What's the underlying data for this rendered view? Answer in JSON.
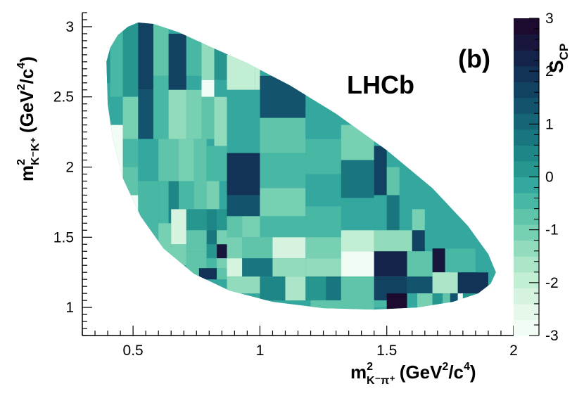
{
  "chart_data": {
    "type": "heatmap",
    "panel_label": "(b)",
    "experiment_label": "LHCb",
    "x_axis": {
      "label": {
        "base": "m",
        "sup": "2",
        "sub": "K⁻π⁺",
        "units_open": "(GeV",
        "units_sup1": "2",
        "units_mid": "/c",
        "units_sup2": "4",
        "units_close": ")"
      },
      "range": [
        0.3,
        2.0
      ],
      "ticks": [
        0.5,
        1.0,
        1.5,
        2.0
      ],
      "tick_labels": [
        "0.5",
        "1",
        "1.5",
        "2"
      ]
    },
    "y_axis": {
      "label": {
        "base": "m",
        "sup": "2",
        "sub": "K⁻K⁺",
        "units_open": "(GeV",
        "units_sup1": "2",
        "units_mid": "/c",
        "units_sup2": "4",
        "units_close": ")"
      },
      "range": [
        0.8,
        3.1
      ],
      "ticks": [
        1.0,
        1.5,
        2.0,
        2.5,
        3.0
      ],
      "tick_labels": [
        "1",
        "1.5",
        "2",
        "2.5",
        "3"
      ]
    },
    "z_axis": {
      "label": {
        "base": "S",
        "sub": "CP"
      },
      "range": [
        -3,
        3
      ],
      "ticks": [
        -3,
        -2,
        -1,
        0,
        1,
        2,
        3
      ],
      "tick_labels": [
        "-3",
        "-2",
        "-1",
        "0",
        "1",
        "2",
        "3"
      ]
    },
    "colorscale": [
      "#f1fcf4",
      "#e5f8e9",
      "#d5f3df",
      "#c2eed3",
      "#acE5c8",
      "#92dcbd",
      "#78d0b3",
      "#5fc4aa",
      "#48b7a3",
      "#34a79e",
      "#26968f",
      "#1e8687",
      "#19767f",
      "#166577",
      "#14536d",
      "#124262",
      "#123257",
      "#14234a",
      "#18163c",
      "#1d0a2f"
    ],
    "domain_boundary": [
      [
        0.395,
        2.75
      ],
      [
        0.41,
        2.85
      ],
      [
        0.44,
        2.94
      ],
      [
        0.48,
        3.0
      ],
      [
        0.52,
        3.03
      ],
      [
        0.58,
        3.02
      ],
      [
        0.68,
        2.96
      ],
      [
        0.8,
        2.86
      ],
      [
        0.95,
        2.74
      ],
      [
        1.12,
        2.58
      ],
      [
        1.3,
        2.38
      ],
      [
        1.5,
        2.12
      ],
      [
        1.68,
        1.85
      ],
      [
        1.82,
        1.58
      ],
      [
        1.9,
        1.38
      ],
      [
        1.93,
        1.25
      ],
      [
        1.91,
        1.17
      ],
      [
        1.86,
        1.1
      ],
      [
        1.76,
        1.04
      ],
      [
        1.62,
        1.0
      ],
      [
        1.45,
        0.985
      ],
      [
        1.25,
        0.995
      ],
      [
        1.05,
        1.04
      ],
      [
        0.88,
        1.12
      ],
      [
        0.74,
        1.24
      ],
      [
        0.62,
        1.42
      ],
      [
        0.53,
        1.65
      ],
      [
        0.46,
        1.92
      ],
      [
        0.42,
        2.2
      ],
      [
        0.4,
        2.45
      ]
    ],
    "cells": [
      {
        "x0": 0.38,
        "x1": 0.41,
        "y0": 2.6,
        "y1": 3.05,
        "v": 0.0
      },
      {
        "x0": 0.41,
        "x1": 0.46,
        "y0": 2.5,
        "y1": 3.05,
        "v": -0.4
      },
      {
        "x0": 0.46,
        "x1": 0.52,
        "y0": 2.5,
        "y1": 3.05,
        "v": 0.3
      },
      {
        "x0": 0.38,
        "x1": 0.46,
        "y0": 2.3,
        "y1": 2.5,
        "v": -0.3
      },
      {
        "x0": 0.46,
        "x1": 0.52,
        "y0": 2.3,
        "y1": 2.5,
        "v": -0.6
      },
      {
        "x0": 0.38,
        "x1": 0.46,
        "y0": 1.8,
        "y1": 2.3,
        "v": -2.8
      },
      {
        "x0": 0.46,
        "x1": 0.52,
        "y0": 2.2,
        "y1": 2.5,
        "v": -1.2
      },
      {
        "x0": 0.46,
        "x1": 0.52,
        "y0": 2.0,
        "y1": 2.2,
        "v": -0.5
      },
      {
        "x0": 0.38,
        "x1": 0.52,
        "y0": 1.4,
        "y1": 1.8,
        "v": -2.9
      },
      {
        "x0": 0.46,
        "x1": 0.52,
        "y0": 1.8,
        "y1": 2.0,
        "v": -0.7
      },
      {
        "x0": 0.52,
        "x1": 0.58,
        "y0": 2.55,
        "y1": 3.05,
        "v": 1.6
      },
      {
        "x0": 0.52,
        "x1": 0.58,
        "y0": 2.2,
        "y1": 2.55,
        "v": 1.2
      },
      {
        "x0": 0.52,
        "x1": 0.6,
        "y0": 1.9,
        "y1": 2.2,
        "v": -0.1
      },
      {
        "x0": 0.52,
        "x1": 0.6,
        "y0": 1.3,
        "y1": 1.9,
        "v": -0.4
      },
      {
        "x0": 0.58,
        "x1": 0.64,
        "y0": 2.65,
        "y1": 3.05,
        "v": -0.9
      },
      {
        "x0": 0.58,
        "x1": 0.64,
        "y0": 2.2,
        "y1": 2.65,
        "v": -0.4
      },
      {
        "x0": 0.6,
        "x1": 0.68,
        "y0": 1.9,
        "y1": 2.2,
        "v": -0.6
      },
      {
        "x0": 0.6,
        "x1": 0.64,
        "y0": 1.6,
        "y1": 1.9,
        "v": -0.5
      },
      {
        "x0": 0.64,
        "x1": 0.68,
        "y0": 1.6,
        "y1": 1.9,
        "v": 0.4
      },
      {
        "x0": 0.6,
        "x1": 0.65,
        "y0": 1.3,
        "y1": 1.6,
        "v": -1.0
      },
      {
        "x0": 0.64,
        "x1": 0.71,
        "y0": 2.55,
        "y1": 2.95,
        "v": 1.8
      },
      {
        "x0": 0.71,
        "x1": 0.77,
        "y0": 2.65,
        "y1": 2.95,
        "v": -0.4
      },
      {
        "x0": 0.64,
        "x1": 0.71,
        "y0": 2.2,
        "y1": 2.55,
        "v": -1.4
      },
      {
        "x0": 0.71,
        "x1": 0.77,
        "y0": 2.2,
        "y1": 2.55,
        "v": -1.1
      },
      {
        "x0": 0.68,
        "x1": 0.74,
        "y0": 1.9,
        "y1": 2.2,
        "v": -1.2
      },
      {
        "x0": 0.74,
        "x1": 0.79,
        "y0": 1.9,
        "y1": 2.2,
        "v": -0.8
      },
      {
        "x0": 0.68,
        "x1": 0.74,
        "y0": 1.7,
        "y1": 1.9,
        "v": -0.4
      },
      {
        "x0": 0.74,
        "x1": 0.79,
        "y0": 1.7,
        "y1": 1.9,
        "v": -0.6
      },
      {
        "x0": 0.65,
        "x1": 0.71,
        "y0": 1.45,
        "y1": 1.7,
        "v": -2.2
      },
      {
        "x0": 0.71,
        "x1": 0.79,
        "y0": 1.55,
        "y1": 1.7,
        "v": 0.0
      },
      {
        "x0": 0.71,
        "x1": 0.79,
        "y0": 1.4,
        "y1": 1.55,
        "v": -0.8
      },
      {
        "x0": 0.65,
        "x1": 0.71,
        "y0": 1.3,
        "y1": 1.45,
        "v": -1.0
      },
      {
        "x0": 0.71,
        "x1": 0.79,
        "y0": 1.2,
        "y1": 1.4,
        "v": -0.6
      },
      {
        "x0": 0.77,
        "x1": 0.83,
        "y0": 2.62,
        "y1": 2.9,
        "v": -1.5
      },
      {
        "x0": 0.77,
        "x1": 0.82,
        "y0": 2.5,
        "y1": 2.62,
        "v": -2.7
      },
      {
        "x0": 0.82,
        "x1": 0.87,
        "y0": 2.62,
        "y1": 2.85,
        "v": 0.2
      },
      {
        "x0": 0.82,
        "x1": 0.87,
        "y0": 2.5,
        "y1": 2.62,
        "v": -0.3
      },
      {
        "x0": 0.77,
        "x1": 0.82,
        "y0": 2.2,
        "y1": 2.5,
        "v": -0.9
      },
      {
        "x0": 0.82,
        "x1": 0.87,
        "y0": 2.15,
        "y1": 2.5,
        "v": -1.5
      },
      {
        "x0": 0.79,
        "x1": 0.87,
        "y0": 1.9,
        "y1": 2.15,
        "v": -0.4
      },
      {
        "x0": 0.79,
        "x1": 0.84,
        "y0": 1.7,
        "y1": 1.9,
        "v": -1.0
      },
      {
        "x0": 0.84,
        "x1": 0.87,
        "y0": 1.7,
        "y1": 1.9,
        "v": -0.3
      },
      {
        "x0": 0.79,
        "x1": 0.83,
        "y0": 1.55,
        "y1": 1.7,
        "v": 0.5
      },
      {
        "x0": 0.83,
        "x1": 0.87,
        "y0": 1.55,
        "y1": 1.7,
        "v": 0.2
      },
      {
        "x0": 0.79,
        "x1": 0.83,
        "y0": 1.45,
        "y1": 1.55,
        "v": 0.6
      },
      {
        "x0": 0.83,
        "x1": 0.87,
        "y0": 1.45,
        "y1": 1.55,
        "v": -1.2
      },
      {
        "x0": 0.79,
        "x1": 0.83,
        "y0": 1.35,
        "y1": 1.45,
        "v": 0.0
      },
      {
        "x0": 0.83,
        "x1": 0.87,
        "y0": 1.35,
        "y1": 1.45,
        "v": 2.4
      },
      {
        "x0": 0.79,
        "x1": 0.83,
        "y0": 1.28,
        "y1": 1.35,
        "v": -0.4
      },
      {
        "x0": 0.83,
        "x1": 0.87,
        "y0": 1.28,
        "y1": 1.35,
        "v": -1.2
      },
      {
        "x0": 0.76,
        "x1": 0.83,
        "y0": 1.2,
        "y1": 1.28,
        "v": 2.0
      },
      {
        "x0": 0.83,
        "x1": 0.87,
        "y0": 1.2,
        "y1": 1.28,
        "v": -0.9
      },
      {
        "x0": 0.87,
        "x1": 0.98,
        "y0": 2.55,
        "y1": 2.8,
        "v": -2.0
      },
      {
        "x0": 0.87,
        "x1": 0.98,
        "y0": 2.1,
        "y1": 2.55,
        "v": -0.2
      },
      {
        "x0": 0.87,
        "x1": 1.0,
        "y0": 1.8,
        "y1": 2.1,
        "v": 2.0
      },
      {
        "x0": 0.87,
        "x1": 1.0,
        "y0": 1.65,
        "y1": 1.8,
        "v": 1.2
      },
      {
        "x0": 0.87,
        "x1": 0.93,
        "y0": 1.5,
        "y1": 1.65,
        "v": -0.6
      },
      {
        "x0": 0.93,
        "x1": 1.05,
        "y0": 1.5,
        "y1": 1.65,
        "v": -1.0
      },
      {
        "x0": 0.87,
        "x1": 0.93,
        "y0": 1.35,
        "y1": 1.5,
        "v": -1.0
      },
      {
        "x0": 0.93,
        "x1": 1.05,
        "y0": 1.35,
        "y1": 1.5,
        "v": -0.8
      },
      {
        "x0": 0.87,
        "x1": 0.93,
        "y0": 1.22,
        "y1": 1.35,
        "v": -2.2
      },
      {
        "x0": 0.93,
        "x1": 1.05,
        "y0": 1.22,
        "y1": 1.35,
        "v": 0.6
      },
      {
        "x0": 0.87,
        "x1": 1.0,
        "y0": 1.1,
        "y1": 1.22,
        "v": -1.5
      },
      {
        "x0": 0.98,
        "x1": 1.0,
        "y0": 2.55,
        "y1": 2.75,
        "v": -2.0
      },
      {
        "x0": 1.0,
        "x1": 1.18,
        "y0": 2.35,
        "y1": 2.65,
        "v": 1.4
      },
      {
        "x0": 0.98,
        "x1": 1.0,
        "y0": 2.1,
        "y1": 2.55,
        "v": -0.2
      },
      {
        "x0": 1.0,
        "x1": 1.18,
        "y0": 2.1,
        "y1": 2.35,
        "v": -0.6
      },
      {
        "x0": 1.0,
        "x1": 1.18,
        "y0": 1.85,
        "y1": 2.1,
        "v": -0.5
      },
      {
        "x0": 1.0,
        "x1": 1.18,
        "y0": 1.65,
        "y1": 1.85,
        "v": -1.2
      },
      {
        "x0": 1.0,
        "x1": 1.18,
        "y0": 1.5,
        "y1": 1.65,
        "v": -0.4
      },
      {
        "x0": 1.05,
        "x1": 1.18,
        "y0": 1.35,
        "y1": 1.5,
        "v": -2.4
      },
      {
        "x0": 1.05,
        "x1": 1.18,
        "y0": 1.22,
        "y1": 1.35,
        "v": -1.4
      },
      {
        "x0": 1.0,
        "x1": 1.1,
        "y0": 1.05,
        "y1": 1.22,
        "v": 0.5
      },
      {
        "x0": 1.1,
        "x1": 1.18,
        "y0": 1.05,
        "y1": 1.22,
        "v": -1.7
      },
      {
        "x0": 1.18,
        "x1": 1.32,
        "y0": 2.2,
        "y1": 2.45,
        "v": -0.1
      },
      {
        "x0": 1.18,
        "x1": 1.32,
        "y0": 1.95,
        "y1": 2.2,
        "v": -0.5
      },
      {
        "x0": 1.18,
        "x1": 1.32,
        "y0": 1.72,
        "y1": 1.95,
        "v": -0.2
      },
      {
        "x0": 1.18,
        "x1": 1.32,
        "y0": 1.5,
        "y1": 1.72,
        "v": -0.4
      },
      {
        "x0": 1.18,
        "x1": 1.32,
        "y0": 1.35,
        "y1": 1.5,
        "v": -1.2
      },
      {
        "x0": 1.18,
        "x1": 1.32,
        "y0": 1.22,
        "y1": 1.35,
        "v": -1.5
      },
      {
        "x0": 1.18,
        "x1": 1.26,
        "y0": 1.05,
        "y1": 1.22,
        "v": 0.0
      },
      {
        "x0": 1.26,
        "x1": 1.32,
        "y0": 1.05,
        "y1": 1.22,
        "v": 0.7
      },
      {
        "x0": 1.32,
        "x1": 1.45,
        "y0": 2.05,
        "y1": 2.3,
        "v": -1.0
      },
      {
        "x0": 1.32,
        "x1": 1.45,
        "y0": 1.78,
        "y1": 2.05,
        "v": 0.6
      },
      {
        "x0": 1.32,
        "x1": 1.45,
        "y0": 1.55,
        "y1": 1.78,
        "v": -0.2
      },
      {
        "x0": 1.32,
        "x1": 1.45,
        "y0": 1.4,
        "y1": 1.55,
        "v": -1.8
      },
      {
        "x0": 1.32,
        "x1": 1.45,
        "y0": 1.22,
        "y1": 1.4,
        "v": -2.8
      },
      {
        "x0": 1.32,
        "x1": 1.45,
        "y0": 1.0,
        "y1": 1.22,
        "v": -0.8
      },
      {
        "x0": 1.45,
        "x1": 1.5,
        "y0": 1.8,
        "y1": 2.15,
        "v": 1.6
      },
      {
        "x0": 1.5,
        "x1": 1.55,
        "y0": 1.8,
        "y1": 2.0,
        "v": -0.6
      },
      {
        "x0": 1.45,
        "x1": 1.5,
        "y0": 1.55,
        "y1": 1.8,
        "v": -0.2
      },
      {
        "x0": 1.5,
        "x1": 1.55,
        "y0": 1.55,
        "y1": 1.8,
        "v": 0.8
      },
      {
        "x0": 1.55,
        "x1": 1.6,
        "y0": 1.55,
        "y1": 1.85,
        "v": -0.3
      },
      {
        "x0": 1.45,
        "x1": 1.6,
        "y0": 1.4,
        "y1": 1.55,
        "v": -1.5
      },
      {
        "x0": 1.45,
        "x1": 1.58,
        "y0": 1.22,
        "y1": 1.4,
        "v": 2.2
      },
      {
        "x0": 1.45,
        "x1": 1.58,
        "y0": 1.05,
        "y1": 1.22,
        "v": 1.8
      },
      {
        "x0": 1.45,
        "x1": 1.5,
        "y0": 1.0,
        "y1": 1.05,
        "v": -0.4
      },
      {
        "x0": 1.6,
        "x1": 1.65,
        "y0": 1.55,
        "y1": 1.7,
        "v": -1.2
      },
      {
        "x0": 1.6,
        "x1": 1.65,
        "y0": 1.4,
        "y1": 1.55,
        "v": 1.8
      },
      {
        "x0": 1.58,
        "x1": 1.68,
        "y0": 1.22,
        "y1": 1.4,
        "v": -0.6
      },
      {
        "x0": 1.58,
        "x1": 1.68,
        "y0": 1.1,
        "y1": 1.22,
        "v": 1.2
      },
      {
        "x0": 1.65,
        "x1": 1.78,
        "y0": 1.42,
        "y1": 1.6,
        "v": -0.1
      },
      {
        "x0": 1.68,
        "x1": 1.73,
        "y0": 1.25,
        "y1": 1.42,
        "v": 2.6
      },
      {
        "x0": 1.73,
        "x1": 1.85,
        "y0": 1.25,
        "y1": 1.42,
        "v": -0.4
      },
      {
        "x0": 1.68,
        "x1": 1.78,
        "y0": 1.1,
        "y1": 1.25,
        "v": -1.6
      },
      {
        "x0": 1.78,
        "x1": 1.9,
        "y0": 1.1,
        "y1": 1.25,
        "v": 2.0
      },
      {
        "x0": 1.85,
        "x1": 1.93,
        "y0": 1.25,
        "y1": 1.42,
        "v": -0.3
      },
      {
        "x0": 1.5,
        "x1": 1.58,
        "y0": 0.98,
        "y1": 1.1,
        "v": 3.0
      },
      {
        "x0": 1.58,
        "x1": 1.62,
        "y0": 0.98,
        "y1": 1.1,
        "v": -0.2
      },
      {
        "x0": 1.62,
        "x1": 1.68,
        "y0": 0.98,
        "y1": 1.1,
        "v": -1.2
      },
      {
        "x0": 1.68,
        "x1": 1.72,
        "y0": 0.98,
        "y1": 1.1,
        "v": 0.2
      },
      {
        "x0": 1.72,
        "x1": 1.75,
        "y0": 0.98,
        "y1": 1.1,
        "v": -0.8
      },
      {
        "x0": 1.75,
        "x1": 1.78,
        "y0": 0.98,
        "y1": 1.1,
        "v": 1.4
      },
      {
        "x0": 1.78,
        "x1": 1.8,
        "y0": 0.98,
        "y1": 1.1,
        "v": -2.8
      },
      {
        "x0": 1.8,
        "x1": 1.93,
        "y0": 0.98,
        "y1": 1.1,
        "v": 0.0
      },
      {
        "x0": 1.2,
        "x1": 1.45,
        "y0": 0.97,
        "y1": 1.05,
        "v": -0.8
      }
    ]
  }
}
